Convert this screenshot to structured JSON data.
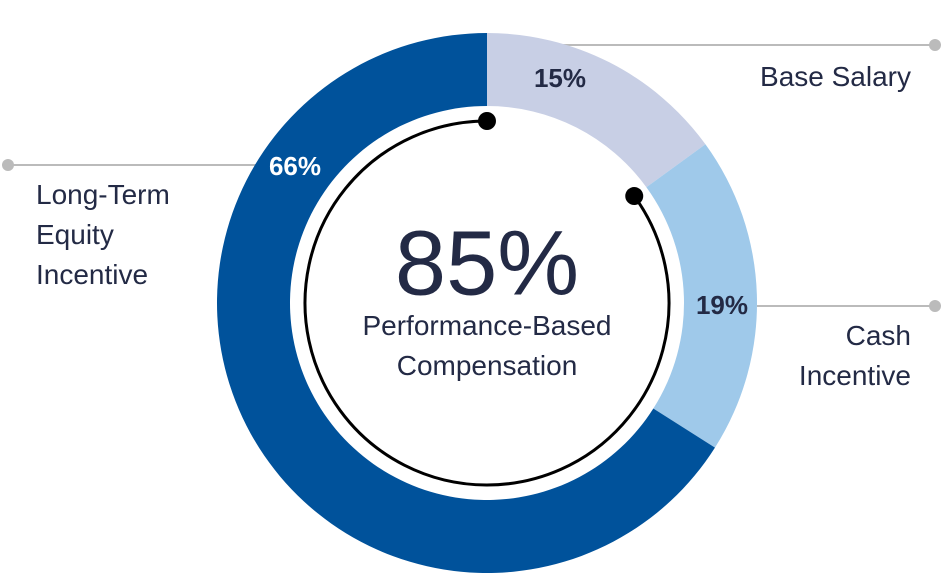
{
  "chart_data": {
    "type": "donut",
    "categories": [
      "Base Salary",
      "Cash Incentive",
      "Long-Term Equity Incentive"
    ],
    "values": [
      15,
      19,
      66
    ],
    "value_labels": [
      "15%",
      "19%",
      "66%"
    ],
    "colors": [
      "#c8cfe5",
      "#9fc9ea",
      "#00529b"
    ],
    "center": {
      "value": 85,
      "label": "85%",
      "text": "Performance-Based Compensation"
    }
  }
}
